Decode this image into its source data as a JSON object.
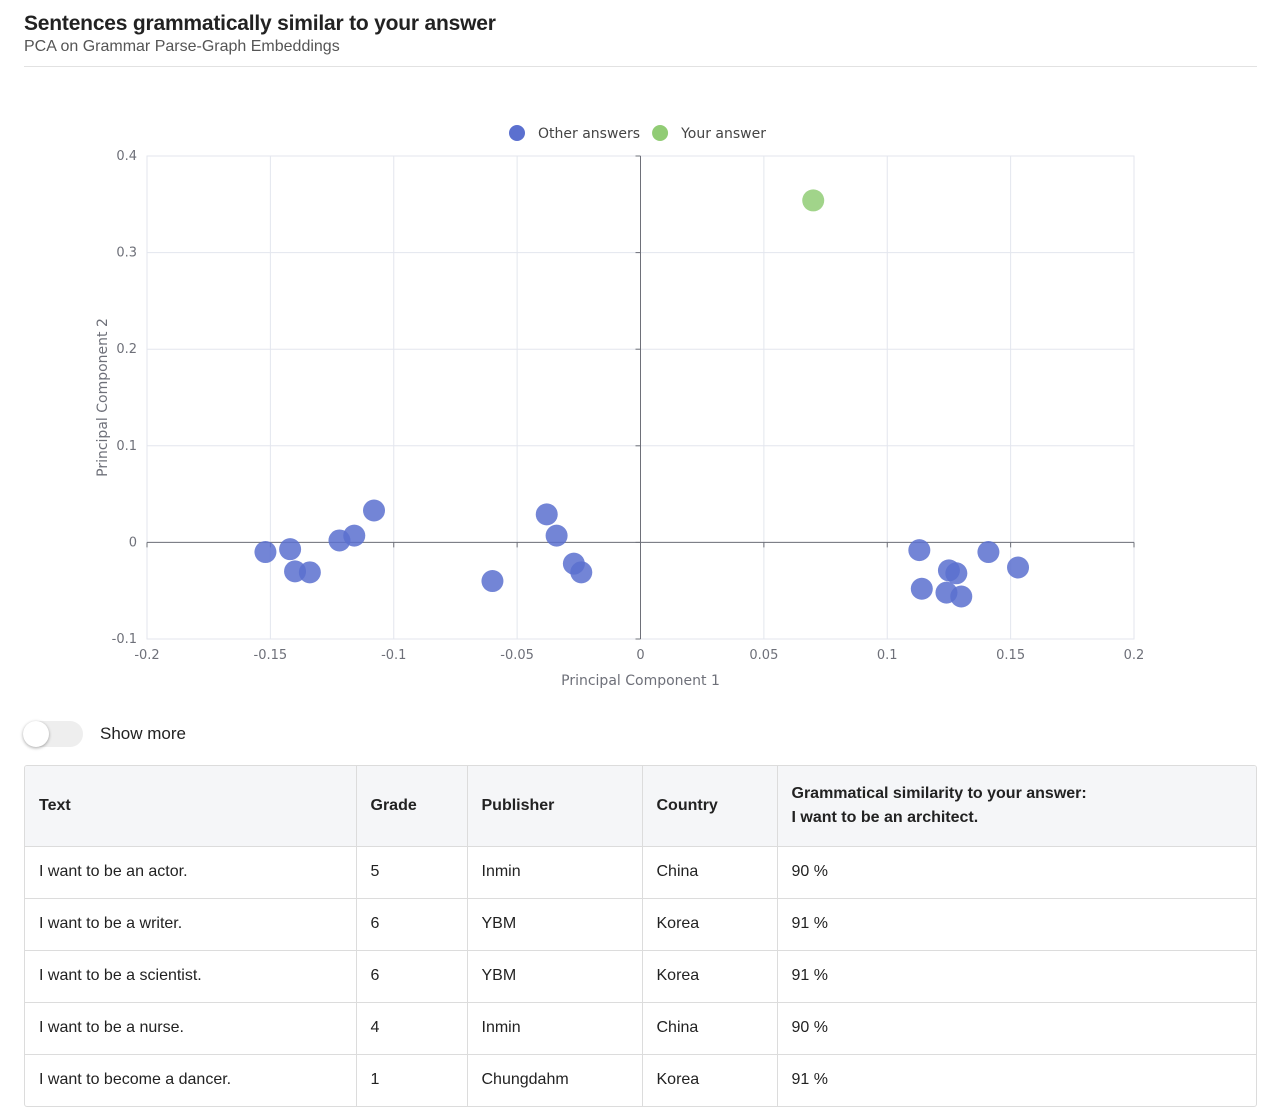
{
  "header": {
    "title": "Sentences grammatically similar to your answer",
    "subtitle": "PCA on Grammar Parse-Graph Embeddings"
  },
  "chart_data": {
    "type": "scatter",
    "xlabel": "Principal Component 1",
    "ylabel": "Principal Component 2",
    "xlim": [
      -0.2,
      0.2
    ],
    "ylim": [
      -0.1,
      0.4
    ],
    "xticks": [
      "-0.2",
      "-0.15",
      "-0.1",
      "-0.05",
      "0",
      "0.05",
      "0.1",
      "0.15",
      "0.2"
    ],
    "yticks": [
      "-0.1",
      "0",
      "0.1",
      "0.2",
      "0.3",
      "0.4"
    ],
    "grid": true,
    "legend_position": "top-center",
    "series": [
      {
        "name": "Other answers",
        "color": "#5b70cf",
        "points": [
          [
            -0.152,
            -0.01
          ],
          [
            -0.142,
            -0.007
          ],
          [
            -0.14,
            -0.03
          ],
          [
            -0.134,
            -0.031
          ],
          [
            -0.122,
            0.002
          ],
          [
            -0.116,
            0.007
          ],
          [
            -0.108,
            0.033
          ],
          [
            -0.06,
            -0.04
          ],
          [
            -0.038,
            0.029
          ],
          [
            -0.034,
            0.007
          ],
          [
            -0.027,
            -0.022
          ],
          [
            -0.024,
            -0.031
          ],
          [
            0.113,
            -0.008
          ],
          [
            0.114,
            -0.048
          ],
          [
            0.125,
            -0.029
          ],
          [
            0.128,
            -0.032
          ],
          [
            0.124,
            -0.052
          ],
          [
            0.13,
            -0.056
          ],
          [
            0.141,
            -0.01
          ],
          [
            0.153,
            -0.026
          ]
        ]
      },
      {
        "name": "Your answer",
        "color": "#91cc75",
        "points": [
          [
            0.07,
            0.354
          ]
        ]
      }
    ]
  },
  "controls": {
    "show_more_label": "Show more",
    "show_more_on": false
  },
  "table": {
    "headers": {
      "text": "Text",
      "grade": "Grade",
      "publisher": "Publisher",
      "country": "Country",
      "similarity_line1": "Grammatical similarity to your answer:",
      "similarity_line2": "I want to be an architect."
    },
    "rows": [
      {
        "text": "I want to be an actor.",
        "grade": "5",
        "publisher": "Inmin",
        "country": "China",
        "similarity": "90 %"
      },
      {
        "text": "I want to be a writer.",
        "grade": "6",
        "publisher": "YBM",
        "country": "Korea",
        "similarity": "91 %"
      },
      {
        "text": "I want to be a scientist.",
        "grade": "6",
        "publisher": "YBM",
        "country": "Korea",
        "similarity": "91 %"
      },
      {
        "text": "I want to be a nurse.",
        "grade": "4",
        "publisher": "Inmin",
        "country": "China",
        "similarity": "90 %"
      },
      {
        "text": "I want to become a dancer.",
        "grade": "1",
        "publisher": "Chungdahm",
        "country": "Korea",
        "similarity": "91 %"
      }
    ]
  }
}
